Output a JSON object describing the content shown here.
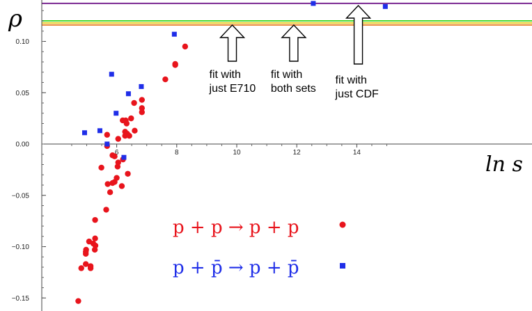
{
  "chart_data": {
    "type": "scatter",
    "xlabel": "ln s",
    "ylabel": "ρ",
    "xlim": [
      3.6,
      15.0
    ],
    "ylim": [
      -0.16,
      0.14
    ],
    "x_ticks": [
      6,
      8,
      10,
      12,
      14
    ],
    "x_tick_labels": [
      "6",
      "8",
      "10",
      "12",
      "14"
    ],
    "y_ticks": [
      -0.15,
      -0.1,
      -0.05,
      0.0,
      0.05,
      0.1
    ],
    "y_tick_labels": [
      "−0.15",
      "−0.10",
      "−0.05",
      "0.00",
      "0.05",
      "0.10"
    ],
    "grid": false,
    "fit_lines": [
      {
        "y": 0.137,
        "color": "#7b2a92"
      },
      {
        "y": 0.12,
        "color": "#46d62a"
      },
      {
        "y": 0.118,
        "color": "#e6cf2d"
      },
      {
        "y": 0.116,
        "color": "#e8852e"
      }
    ],
    "series": [
      {
        "name": "p + p → p + p",
        "color": "#e8141c",
        "marker": "circle",
        "points": [
          [
            4.72,
            -0.153
          ],
          [
            4.82,
            -0.121
          ],
          [
            4.97,
            -0.117
          ],
          [
            4.97,
            -0.107
          ],
          [
            4.98,
            -0.103
          ],
          [
            4.97,
            -0.105
          ],
          [
            5.08,
            -0.095
          ],
          [
            5.13,
            -0.119
          ],
          [
            5.13,
            -0.121
          ],
          [
            5.22,
            -0.097
          ],
          [
            5.27,
            -0.103
          ],
          [
            5.28,
            -0.092
          ],
          [
            5.29,
            -0.099
          ],
          [
            5.28,
            -0.074
          ],
          [
            5.49,
            -0.023
          ],
          [
            5.65,
            -0.064
          ],
          [
            5.7,
            -0.039
          ],
          [
            5.68,
            0.009
          ],
          [
            5.68,
            -0.002
          ],
          [
            5.78,
            -0.047
          ],
          [
            5.86,
            -0.038
          ],
          [
            5.86,
            -0.011
          ],
          [
            5.93,
            -0.037
          ],
          [
            5.93,
            -0.012
          ],
          [
            6.0,
            -0.033
          ],
          [
            6.03,
            -0.022
          ],
          [
            6.05,
            -0.018
          ],
          [
            6.05,
            0.005
          ],
          [
            6.17,
            -0.041
          ],
          [
            6.21,
            -0.015
          ],
          [
            6.2,
            0.023
          ],
          [
            6.28,
            0.012
          ],
          [
            6.28,
            0.008
          ],
          [
            6.3,
            0.023
          ],
          [
            6.33,
            0.02
          ],
          [
            6.35,
            0.01
          ],
          [
            6.37,
            -0.029
          ],
          [
            6.42,
            0.008
          ],
          [
            6.48,
            0.025
          ],
          [
            6.58,
            0.04
          ],
          [
            6.6,
            0.013
          ],
          [
            6.84,
            0.043
          ],
          [
            6.84,
            0.035
          ],
          [
            6.84,
            0.031
          ],
          [
            7.62,
            0.063
          ],
          [
            7.95,
            0.078
          ],
          [
            7.95,
            0.077
          ],
          [
            8.28,
            0.095
          ]
        ]
      },
      {
        "name": "p + p̄ → p + p̄",
        "color": "#1f2ee8",
        "marker": "square",
        "points": [
          [
            4.93,
            0.011
          ],
          [
            5.44,
            0.013
          ],
          [
            5.68,
            0.0
          ],
          [
            5.83,
            0.068
          ],
          [
            5.98,
            0.03
          ],
          [
            6.24,
            -0.013
          ],
          [
            6.39,
            0.049
          ],
          [
            6.82,
            0.056
          ],
          [
            7.92,
            0.107
          ],
          [
            12.55,
            0.137
          ],
          [
            14.95,
            0.134
          ]
        ]
      }
    ],
    "annotations": [
      {
        "text": [
          "fit with",
          "just E710"
        ],
        "arrow_x": 9.85
      },
      {
        "text": [
          "fit with",
          "both sets"
        ],
        "arrow_x": 11.9
      },
      {
        "text": [
          "fit with",
          "just CDF"
        ],
        "arrow_x": 14.05
      }
    ],
    "legend": [
      {
        "label": "p + p → p + p",
        "color": "#e8141c",
        "marker": "circle"
      },
      {
        "label": "p + p̄ → p + p̄",
        "color": "#1f2ee8",
        "marker": "square"
      }
    ]
  }
}
